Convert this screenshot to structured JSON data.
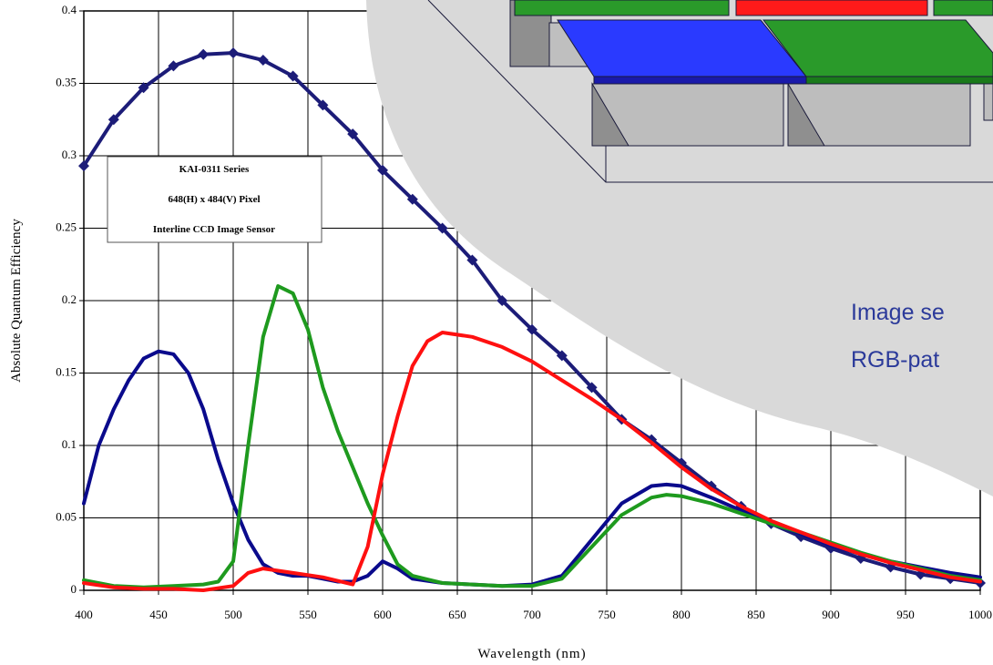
{
  "chart_data": {
    "type": "line",
    "x_label": "Wavelength (nm)",
    "y_label": "Absolute Quantum Efficiency",
    "annotation": [
      "KAI-0311 Series",
      "648(H) x 484(V) Pixel",
      "Interline CCD Image Sensor"
    ],
    "overlay_text": [
      "Image se",
      "RGB-pat"
    ],
    "xlim": [
      400,
      1000
    ],
    "ylim": [
      0,
      0.4
    ],
    "xticks": [
      400,
      450,
      500,
      550,
      600,
      650,
      700,
      750,
      800,
      850,
      900,
      950,
      1000
    ],
    "yticks": [
      0,
      0.05,
      0.1,
      0.15,
      0.2,
      0.25,
      0.3,
      0.35,
      0.4
    ],
    "grid": true,
    "series": [
      {
        "color": "#1c1c78",
        "markers": true,
        "x": [
          400,
          420,
          440,
          460,
          480,
          500,
          520,
          540,
          560,
          580,
          600,
          620,
          640,
          660,
          680,
          700,
          720,
          740,
          760,
          780,
          800,
          820,
          840,
          860,
          880,
          900,
          920,
          940,
          960,
          980,
          1000
        ],
        "values": [
          0.293,
          0.325,
          0.347,
          0.362,
          0.37,
          0.371,
          0.366,
          0.355,
          0.335,
          0.315,
          0.29,
          0.27,
          0.25,
          0.228,
          0.2,
          0.18,
          0.162,
          0.14,
          0.118,
          0.104,
          0.088,
          0.072,
          0.058,
          0.046,
          0.037,
          0.029,
          0.022,
          0.016,
          0.011,
          0.008,
          0.005
        ]
      },
      {
        "color": "#0a0a8c",
        "markers": false,
        "x": [
          400,
          410,
          420,
          430,
          440,
          450,
          460,
          470,
          480,
          490,
          500,
          510,
          520,
          530,
          540,
          550,
          560,
          570,
          580,
          590,
          600,
          610,
          620,
          640,
          660,
          680,
          700,
          720,
          740,
          760,
          780,
          790,
          800,
          820,
          840,
          860,
          880,
          900,
          920,
          940,
          960,
          980,
          1000
        ],
        "values": [
          0.06,
          0.1,
          0.125,
          0.145,
          0.16,
          0.165,
          0.163,
          0.15,
          0.125,
          0.09,
          0.06,
          0.035,
          0.018,
          0.012,
          0.01,
          0.01,
          0.008,
          0.006,
          0.006,
          0.01,
          0.02,
          0.015,
          0.008,
          0.005,
          0.004,
          0.003,
          0.004,
          0.01,
          0.035,
          0.06,
          0.072,
          0.073,
          0.072,
          0.064,
          0.055,
          0.047,
          0.039,
          0.031,
          0.025,
          0.02,
          0.016,
          0.012,
          0.009
        ]
      },
      {
        "color": "#1e9a1e",
        "markers": false,
        "x": [
          400,
          420,
          440,
          460,
          480,
          490,
          500,
          510,
          520,
          530,
          540,
          550,
          560,
          570,
          580,
          590,
          600,
          610,
          620,
          640,
          660,
          680,
          700,
          720,
          740,
          760,
          780,
          790,
          800,
          820,
          840,
          860,
          880,
          900,
          920,
          940,
          960,
          980,
          1000
        ],
        "values": [
          0.007,
          0.003,
          0.002,
          0.003,
          0.004,
          0.006,
          0.02,
          0.1,
          0.175,
          0.21,
          0.205,
          0.18,
          0.14,
          0.11,
          0.085,
          0.06,
          0.038,
          0.018,
          0.01,
          0.005,
          0.004,
          0.003,
          0.003,
          0.008,
          0.03,
          0.052,
          0.064,
          0.066,
          0.065,
          0.06,
          0.053,
          0.046,
          0.04,
          0.033,
          0.026,
          0.02,
          0.015,
          0.01,
          0.007
        ]
      },
      {
        "color": "#ff1010",
        "markers": false,
        "x": [
          400,
          420,
          440,
          460,
          480,
          500,
          510,
          520,
          540,
          560,
          580,
          590,
          600,
          610,
          620,
          630,
          640,
          660,
          680,
          700,
          720,
          740,
          760,
          780,
          800,
          820,
          840,
          860,
          880,
          900,
          920,
          940,
          960,
          980,
          1000
        ],
        "values": [
          0.005,
          0.002,
          0.001,
          0.001,
          0,
          0.003,
          0.012,
          0.015,
          0.012,
          0.009,
          0.004,
          0.03,
          0.08,
          0.12,
          0.155,
          0.172,
          0.178,
          0.175,
          0.168,
          0.158,
          0.145,
          0.132,
          0.118,
          0.102,
          0.085,
          0.07,
          0.058,
          0.048,
          0.04,
          0.032,
          0.025,
          0.019,
          0.014,
          0.009,
          0.006
        ]
      }
    ]
  }
}
